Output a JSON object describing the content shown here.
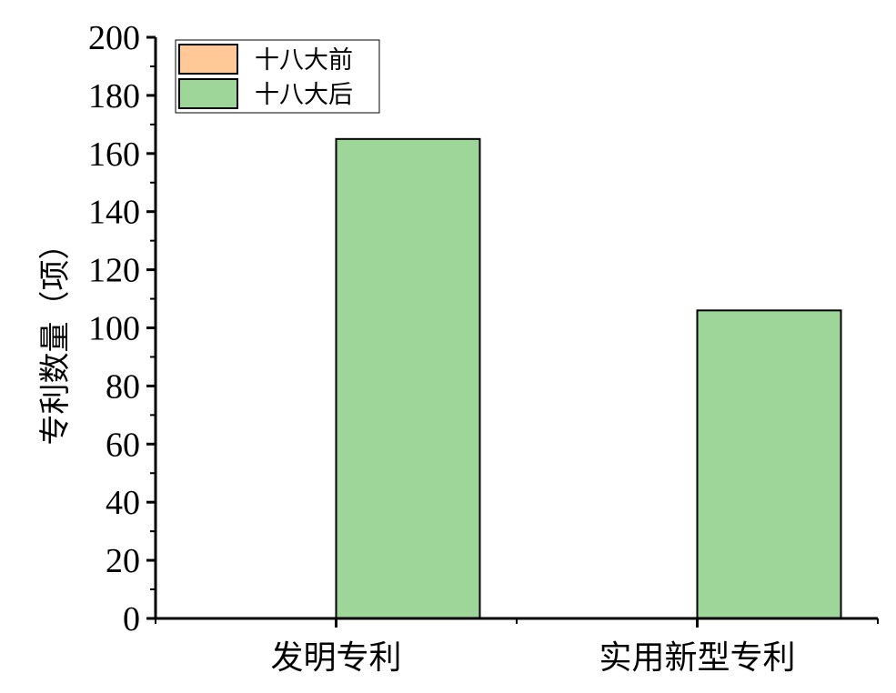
{
  "chart_data": {
    "type": "bar",
    "title": "",
    "xlabel": "",
    "ylabel": "专利数量（项）",
    "categories": [
      "发明专利",
      "实用新型专利"
    ],
    "series": [
      {
        "name": "十八大前",
        "color": "#FFC896",
        "values": [
          0,
          0
        ]
      },
      {
        "name": "十八大后",
        "color": "#9ED69A",
        "values": [
          165,
          106
        ]
      }
    ],
    "ylim": [
      0,
      200
    ],
    "yticks": [
      0,
      20,
      40,
      60,
      80,
      100,
      120,
      140,
      160,
      180,
      200
    ],
    "legend_position": "top-left",
    "grid": false
  }
}
